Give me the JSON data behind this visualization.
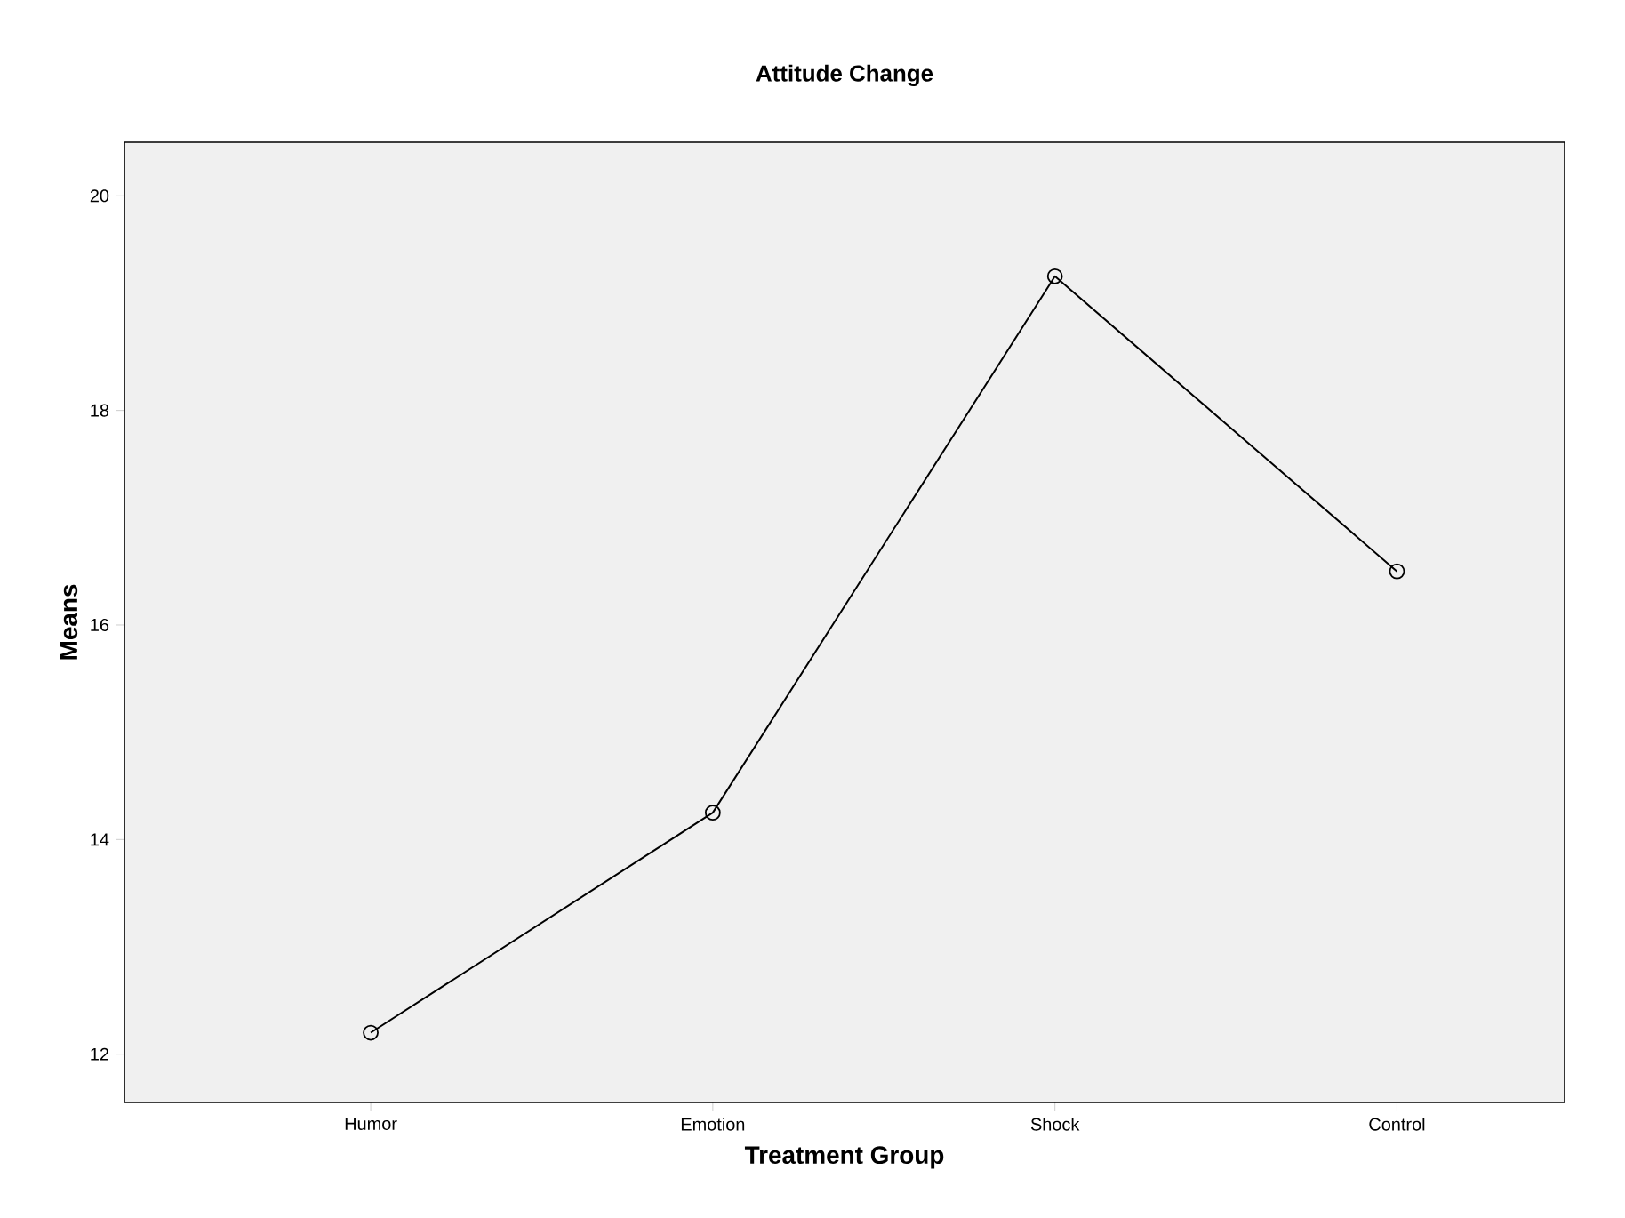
{
  "chart_data": {
    "type": "line",
    "title": "Attitude Change",
    "xlabel": "Treatment Group",
    "ylabel": "Means",
    "categories": [
      "Humor",
      "Emotion",
      "Shock",
      "Control"
    ],
    "series": [
      {
        "color": "#000000",
        "values": [
          12.2,
          14.25,
          19.25,
          16.5
        ]
      }
    ],
    "ylim": [
      11.55,
      20.5
    ],
    "yticks": [
      12,
      14,
      16,
      18,
      20
    ],
    "marker": "circle",
    "line_style": "solid"
  }
}
